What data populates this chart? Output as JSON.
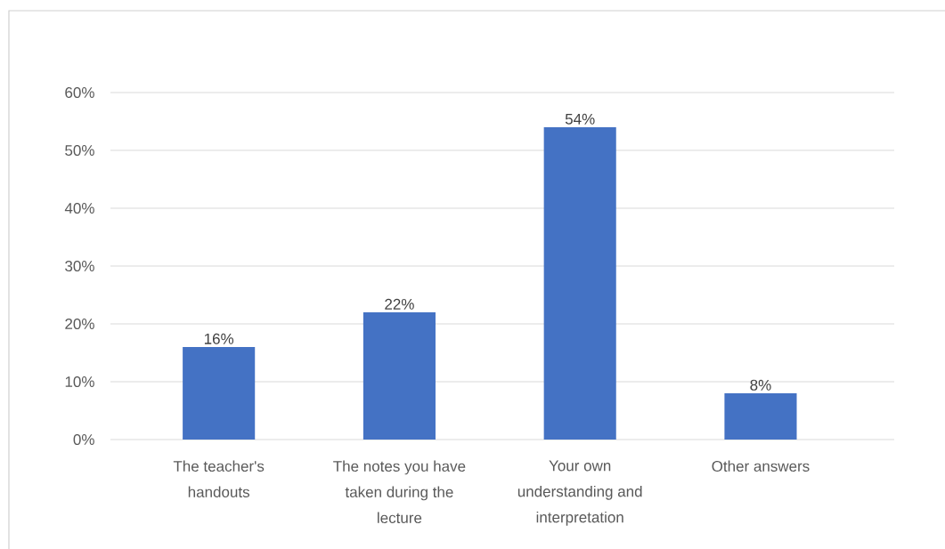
{
  "chart_data": {
    "type": "bar",
    "categories": [
      "The teacher's handouts",
      "The notes you have taken during the lecture",
      "Your own understanding and interpretation",
      "Other answers"
    ],
    "values": [
      16,
      22,
      54,
      8
    ],
    "value_labels": [
      "16%",
      "22%",
      "54%",
      "8%"
    ],
    "color": "#4472c4",
    "ylim": [
      0,
      60
    ],
    "yticks": [
      {
        "value": 0,
        "label": "0%"
      },
      {
        "value": 10,
        "label": "10%"
      },
      {
        "value": 20,
        "label": "20%"
      },
      {
        "value": 30,
        "label": "30%"
      },
      {
        "value": 40,
        "label": "40%"
      },
      {
        "value": 50,
        "label": "50%"
      },
      {
        "value": 60,
        "label": "60%"
      }
    ],
    "grid": "y"
  }
}
